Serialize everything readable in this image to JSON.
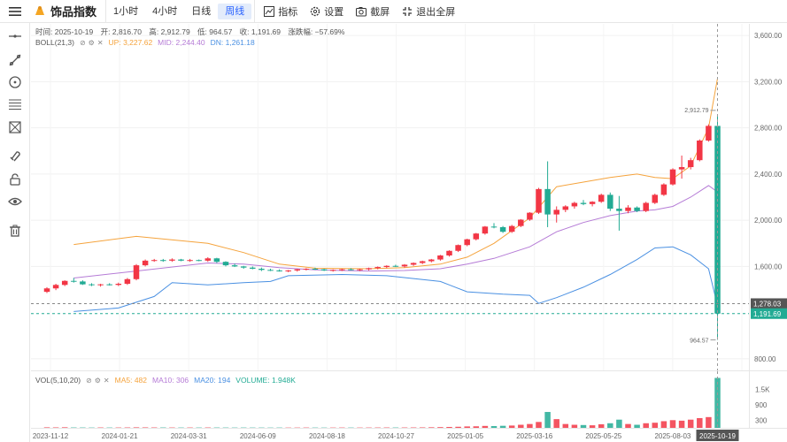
{
  "header": {
    "brand": "饰品指数",
    "timeframes": [
      {
        "label": "1小时",
        "active": false
      },
      {
        "label": "4小时",
        "active": false
      },
      {
        "label": "日线",
        "active": false
      },
      {
        "label": "周线",
        "active": true
      }
    ],
    "tools": {
      "indicator": "指标",
      "settings": "设置",
      "screenshot": "截屏",
      "fullscreen": "退出全屏"
    }
  },
  "ohlc": {
    "time_label": "时间:",
    "time": "2025-10-19",
    "open_label": "开:",
    "open": "2,816.70",
    "high_label": "高:",
    "high": "2,912.79",
    "low_label": "低:",
    "low": "964.57",
    "close_label": "收:",
    "close": "1,191.69",
    "change_label": "涨跌幅:",
    "change": "−57.69%"
  },
  "boll": {
    "name": "BOLL(21,3)",
    "up_label": "UP:",
    "up": "3,227.62",
    "mid_label": "MID:",
    "mid": "2,244.40",
    "dn_label": "DN:",
    "dn": "1,261.18"
  },
  "vol": {
    "name": "VOL(5,10,20)",
    "ma5_label": "MA5:",
    "ma5": "482",
    "ma10_label": "MA10:",
    "ma10": "306",
    "ma20_label": "MA20:",
    "ma20": "194",
    "volume_label": "VOLUME:",
    "volume": "1.948K"
  },
  "colors": {
    "up": "#f23645",
    "down": "#22ab94",
    "boll_up": "#f5a33c",
    "boll_mid": "#b57bd6",
    "boll_dn": "#4a90e2",
    "accent": "#2962ff"
  },
  "price_axis": {
    "ticks": [
      "3,600.00",
      "3,200.00",
      "2,800.00",
      "2,400.00",
      "2,000.00",
      "1,600.00",
      "800.00"
    ],
    "tick_values": [
      3600,
      3200,
      2800,
      2400,
      2000,
      1600,
      800
    ],
    "marker_prev": "1,278.03",
    "marker_last": "1,191.69"
  },
  "vol_axis": {
    "ticks": [
      "1.5K",
      "900",
      "300"
    ],
    "tick_values": [
      1500,
      900,
      300
    ]
  },
  "time_axis": {
    "ticks": [
      "2023-11-12",
      "2024-01-21",
      "2024-03-31",
      "2024-06-09",
      "2024-08-18",
      "2024-10-27",
      "2025-01-05",
      "2025-03-16",
      "2025-05-25",
      "2025-08-03",
      "2025-10-19"
    ]
  },
  "annotations": {
    "high": "2,912.79",
    "low": "964.57"
  },
  "sidebar_icons": [
    "horizontal-line-icon",
    "trend-line-icon",
    "circle-tool-icon",
    "fib-icon",
    "pattern-icon",
    "magnet-icon",
    "lock-icon",
    "eye-icon",
    "trash-icon"
  ],
  "chart_data": {
    "type": "candlestick",
    "ylim": [
      700,
      3700
    ],
    "candles": [
      [
        1380,
        1420,
        1370,
        1410
      ],
      [
        1410,
        1450,
        1395,
        1440
      ],
      [
        1440,
        1480,
        1430,
        1475
      ],
      [
        1475,
        1500,
        1460,
        1470
      ],
      [
        1470,
        1480,
        1440,
        1445
      ],
      [
        1445,
        1455,
        1430,
        1440
      ],
      [
        1440,
        1450,
        1425,
        1445
      ],
      [
        1445,
        1455,
        1435,
        1440
      ],
      [
        1440,
        1460,
        1430,
        1450
      ],
      [
        1450,
        1500,
        1440,
        1490
      ],
      [
        1490,
        1620,
        1480,
        1610
      ],
      [
        1610,
        1660,
        1600,
        1650
      ],
      [
        1650,
        1665,
        1640,
        1655
      ],
      [
        1655,
        1665,
        1640,
        1650
      ],
      [
        1650,
        1670,
        1640,
        1660
      ],
      [
        1660,
        1665,
        1645,
        1650
      ],
      [
        1650,
        1665,
        1640,
        1655
      ],
      [
        1655,
        1660,
        1645,
        1650
      ],
      [
        1650,
        1680,
        1640,
        1670
      ],
      [
        1670,
        1675,
        1630,
        1640
      ],
      [
        1640,
        1645,
        1600,
        1610
      ],
      [
        1610,
        1625,
        1595,
        1600
      ],
      [
        1600,
        1605,
        1580,
        1590
      ],
      [
        1590,
        1600,
        1575,
        1580
      ],
      [
        1580,
        1590,
        1560,
        1570
      ],
      [
        1570,
        1580,
        1560,
        1565
      ],
      [
        1565,
        1575,
        1555,
        1560
      ],
      [
        1560,
        1570,
        1550,
        1565
      ],
      [
        1565,
        1580,
        1555,
        1575
      ],
      [
        1575,
        1585,
        1565,
        1580
      ],
      [
        1580,
        1590,
        1570,
        1575
      ],
      [
        1575,
        1580,
        1560,
        1565
      ],
      [
        1565,
        1575,
        1555,
        1570
      ],
      [
        1570,
        1580,
        1560,
        1575
      ],
      [
        1575,
        1585,
        1565,
        1570
      ],
      [
        1570,
        1580,
        1560,
        1575
      ],
      [
        1575,
        1590,
        1565,
        1585
      ],
      [
        1585,
        1600,
        1575,
        1595
      ],
      [
        1595,
        1610,
        1585,
        1605
      ],
      [
        1605,
        1615,
        1595,
        1600
      ],
      [
        1600,
        1620,
        1590,
        1615
      ],
      [
        1615,
        1635,
        1605,
        1630
      ],
      [
        1630,
        1650,
        1620,
        1645
      ],
      [
        1645,
        1665,
        1635,
        1660
      ],
      [
        1660,
        1700,
        1650,
        1695
      ],
      [
        1695,
        1740,
        1685,
        1735
      ],
      [
        1735,
        1790,
        1725,
        1785
      ],
      [
        1785,
        1840,
        1775,
        1835
      ],
      [
        1835,
        1890,
        1825,
        1885
      ],
      [
        1885,
        1950,
        1875,
        1945
      ],
      [
        1945,
        1975,
        1930,
        1940
      ],
      [
        1940,
        1950,
        1890,
        1900
      ],
      [
        1900,
        1960,
        1890,
        1950
      ],
      [
        1950,
        2010,
        1940,
        2005
      ],
      [
        2005,
        2070,
        1995,
        2065
      ],
      [
        2065,
        2280,
        2055,
        2270
      ],
      [
        2270,
        2510,
        1940,
        2050
      ],
      [
        2050,
        2120,
        1980,
        2090
      ],
      [
        2090,
        2130,
        2070,
        2120
      ],
      [
        2120,
        2160,
        2100,
        2150
      ],
      [
        2150,
        2175,
        2130,
        2140
      ],
      [
        2140,
        2165,
        2120,
        2160
      ],
      [
        2160,
        2230,
        2150,
        2220
      ],
      [
        2220,
        2240,
        2080,
        2100
      ],
      [
        2100,
        2210,
        1910,
        2080
      ],
      [
        2080,
        2130,
        2060,
        2110
      ],
      [
        2110,
        2120,
        2070,
        2080
      ],
      [
        2080,
        2160,
        2070,
        2150
      ],
      [
        2150,
        2230,
        2140,
        2220
      ],
      [
        2220,
        2320,
        2210,
        2310
      ],
      [
        2310,
        2450,
        2300,
        2440
      ],
      [
        2440,
        2560,
        2360,
        2460
      ],
      [
        2460,
        2540,
        2440,
        2520
      ],
      [
        2520,
        2700,
        2510,
        2690
      ],
      [
        2690,
        2830,
        2680,
        2816.7
      ],
      [
        2816.7,
        2912.79,
        964.57,
        1191.69
      ]
    ],
    "volumes": [
      20,
      18,
      22,
      15,
      14,
      12,
      15,
      13,
      14,
      16,
      20,
      18,
      16,
      15,
      14,
      13,
      14,
      13,
      15,
      14,
      13,
      12,
      13,
      12,
      12,
      11,
      12,
      11,
      12,
      13,
      12,
      11,
      12,
      13,
      12,
      12,
      13,
      14,
      15,
      14,
      15,
      16,
      18,
      22,
      28,
      35,
      42,
      55,
      60,
      75,
      70,
      80,
      90,
      120,
      150,
      230,
      620,
      340,
      150,
      120,
      110,
      100,
      140,
      180,
      320,
      150,
      120,
      180,
      200,
      260,
      300,
      280,
      320,
      380,
      420,
      1948
    ],
    "boll_up": [
      [
        3,
        1790
      ],
      [
        10,
        1860
      ],
      [
        18,
        1800
      ],
      [
        22,
        1720
      ],
      [
        26,
        1620
      ],
      [
        30,
        1585
      ],
      [
        36,
        1580
      ],
      [
        40,
        1590
      ],
      [
        44,
        1620
      ],
      [
        47,
        1680
      ],
      [
        50,
        1800
      ],
      [
        54,
        2020
      ],
      [
        57,
        2290
      ],
      [
        60,
        2330
      ],
      [
        63,
        2370
      ],
      [
        66,
        2400
      ],
      [
        68,
        2370
      ],
      [
        70,
        2360
      ],
      [
        72,
        2470
      ],
      [
        74,
        2800
      ],
      [
        75,
        3227.62
      ]
    ],
    "boll_mid": [
      [
        3,
        1500
      ],
      [
        10,
        1560
      ],
      [
        18,
        1630
      ],
      [
        22,
        1620
      ],
      [
        26,
        1590
      ],
      [
        30,
        1570
      ],
      [
        36,
        1560
      ],
      [
        40,
        1565
      ],
      [
        44,
        1580
      ],
      [
        47,
        1620
      ],
      [
        50,
        1670
      ],
      [
        54,
        1770
      ],
      [
        57,
        1900
      ],
      [
        60,
        1980
      ],
      [
        63,
        2040
      ],
      [
        66,
        2080
      ],
      [
        68,
        2090
      ],
      [
        70,
        2120
      ],
      [
        72,
        2200
      ],
      [
        74,
        2300
      ],
      [
        75,
        2244.4
      ]
    ],
    "boll_dn": [
      [
        3,
        1210
      ],
      [
        8,
        1240
      ],
      [
        12,
        1340
      ],
      [
        14,
        1460
      ],
      [
        18,
        1440
      ],
      [
        22,
        1460
      ],
      [
        25,
        1470
      ],
      [
        27,
        1520
      ],
      [
        33,
        1530
      ],
      [
        38,
        1520
      ],
      [
        44,
        1470
      ],
      [
        47,
        1380
      ],
      [
        51,
        1360
      ],
      [
        54,
        1350
      ],
      [
        55,
        1280
      ],
      [
        57,
        1330
      ],
      [
        60,
        1420
      ],
      [
        63,
        1530
      ],
      [
        66,
        1660
      ],
      [
        68,
        1760
      ],
      [
        70,
        1770
      ],
      [
        72,
        1700
      ],
      [
        74,
        1580
      ],
      [
        75,
        1261.18
      ]
    ]
  }
}
